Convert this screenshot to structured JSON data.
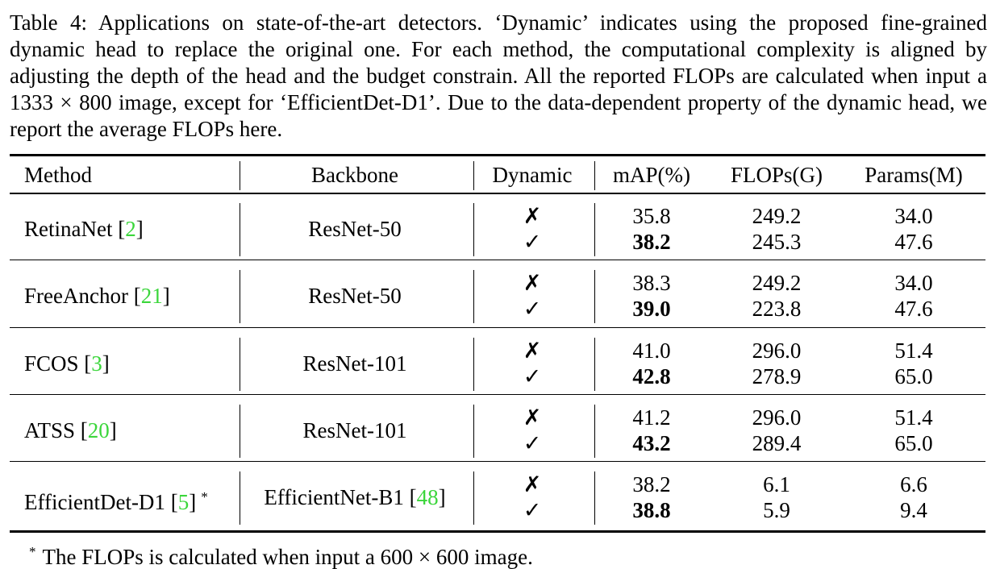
{
  "caption": "Table 4: Applications on state-of-the-art detectors. ‘Dynamic’ indicates using the proposed fine-grained dynamic head to replace the original one. For each method, the computational complexity is aligned by adjusting the depth of the head and the budget constrain. All the reported FLOPs are calculated when input a 1333 × 800 image, except for ‘EfficientDet-D1’. Due to the data-dependent property of the dynamic head, we report the average FLOPs here.",
  "table": {
    "header": [
      "Method",
      "Backbone",
      "Dynamic",
      "mAP(%)",
      "FLOPs(G)",
      "Params(M)"
    ],
    "brackets": [
      "[",
      "]"
    ],
    "rows": [
      {
        "method": "RetinaNet",
        "ref": "2",
        "backbone": "ResNet-50",
        "dynamic": [
          "✗",
          "✓"
        ],
        "map": [
          "35.8",
          "38.2"
        ],
        "flops": [
          "249.2",
          "245.3"
        ],
        "params": [
          "34.0",
          "47.6"
        ]
      },
      {
        "method": "FreeAnchor",
        "ref": "21",
        "backbone": "ResNet-50",
        "dynamic": [
          "✗",
          "✓"
        ],
        "map": [
          "38.3",
          "39.0"
        ],
        "flops": [
          "249.2",
          "223.8"
        ],
        "params": [
          "34.0",
          "47.6"
        ]
      },
      {
        "method": "FCOS",
        "ref": "3",
        "backbone": "ResNet-101",
        "dynamic": [
          "✗",
          "✓"
        ],
        "map": [
          "41.0",
          "42.8"
        ],
        "flops": [
          "296.0",
          "278.9"
        ],
        "params": [
          "51.4",
          "65.0"
        ]
      },
      {
        "method": "ATSS",
        "ref": "20",
        "backbone": "ResNet-101",
        "dynamic": [
          "✗",
          "✓"
        ],
        "map": [
          "41.2",
          "43.2"
        ],
        "flops": [
          "296.0",
          "289.4"
        ],
        "params": [
          "51.4",
          "65.0"
        ]
      },
      {
        "method": "EfficientDet-D1",
        "ref": "5",
        "footnote": true,
        "backbone": "EfficientNet-B1",
        "backbone_ref": "48",
        "dynamic": [
          "✗",
          "✓"
        ],
        "map": [
          "38.2",
          "38.8"
        ],
        "flops": [
          "6.1",
          "5.9"
        ],
        "params": [
          "6.6",
          "9.4"
        ]
      }
    ]
  },
  "footnote": {
    "mark": "*",
    "text": "The FLOPs is calculated when input a 600 × 600 image."
  }
}
